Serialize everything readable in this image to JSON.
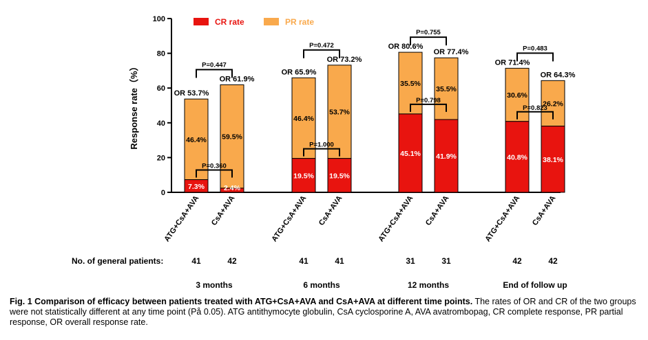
{
  "chart_data": {
    "type": "bar",
    "stacked": true,
    "ylabel": "Response rate（%）",
    "ylim": [
      0,
      100
    ],
    "yticks": [
      "0",
      "20",
      "40",
      "60",
      "80",
      "100"
    ],
    "legend": {
      "position": "top",
      "items": [
        {
          "label": "CR rate",
          "color": "#e8140f"
        },
        {
          "label": "PR rate",
          "color": "#f9a94c"
        }
      ]
    },
    "groups_row_label": "No. of general patients:",
    "groups": [
      {
        "time_label": "3 months",
        "or_p": "P=0.447",
        "cr_p": "P=0.360",
        "bars": [
          {
            "name": "ATG+CsA+AVA",
            "cr": 7.3,
            "pr": 46.4,
            "or": 53.7,
            "cr_label": "7.3%",
            "pr_label": "46.4%",
            "or_label": "OR 53.7%",
            "n": "41"
          },
          {
            "name": "CsA+AVA",
            "cr": 2.4,
            "pr": 59.5,
            "or": 61.9,
            "cr_label": "2.4%",
            "pr_label": "59.5%",
            "or_label": "OR 61.9%",
            "n": "42"
          }
        ]
      },
      {
        "time_label": "6 months",
        "or_p": "P=0.472",
        "cr_p": "P=1.000",
        "bars": [
          {
            "name": "ATG+CsA+AVA",
            "cr": 19.5,
            "pr": 46.4,
            "or": 65.9,
            "cr_label": "19.5%",
            "pr_label": "46.4%",
            "or_label": "OR 65.9%",
            "n": "41"
          },
          {
            "name": "CsA+AVA",
            "cr": 19.5,
            "pr": 53.7,
            "or": 73.2,
            "cr_label": "19.5%",
            "pr_label": "53.7%",
            "or_label": "OR 73.2%",
            "n": "41"
          }
        ]
      },
      {
        "time_label": "12 months",
        "or_p": "P=0.755",
        "cr_p": "P=0.798",
        "bars": [
          {
            "name": "ATG+CsA+AVA",
            "cr": 45.1,
            "pr": 35.5,
            "or": 80.6,
            "cr_label": "45.1%",
            "pr_label": "35.5%",
            "or_label": "OR 80.6%",
            "n": "31"
          },
          {
            "name": "CsA+AVA",
            "cr": 41.9,
            "pr": 35.5,
            "or": 77.4,
            "cr_label": "41.9%",
            "pr_label": "35.5%",
            "or_label": "OR 77.4%",
            "n": "31"
          }
        ]
      },
      {
        "time_label": "End of follow up",
        "or_p": "P=0.483",
        "cr_p": "P=0.823",
        "bars": [
          {
            "name": "ATG+CsA+AVA",
            "cr": 40.8,
            "pr": 30.6,
            "or": 71.4,
            "cr_label": "40.8%",
            "pr_label": "30.6%",
            "or_label": "OR 71.4%",
            "n": "42"
          },
          {
            "name": "CsA+AVA",
            "cr": 38.1,
            "pr": 26.2,
            "or": 64.3,
            "cr_label": "38.1%",
            "pr_label": "26.2%",
            "or_label": "OR 64.3%",
            "n": "42"
          }
        ]
      }
    ]
  },
  "caption": {
    "lead": "Fig. 1   Comparison of efficacy between patients treated with ATG+CsA+AVA and CsA+AVA at different time points.",
    "body": " The rates of OR and CR of the two groups were not statistically different at any time point (På 0.05). ATG antithymocyte globulin, CsA cyclosporine A, AVA avatrombopag, CR complete response, PR partial response, OR overall response rate."
  }
}
